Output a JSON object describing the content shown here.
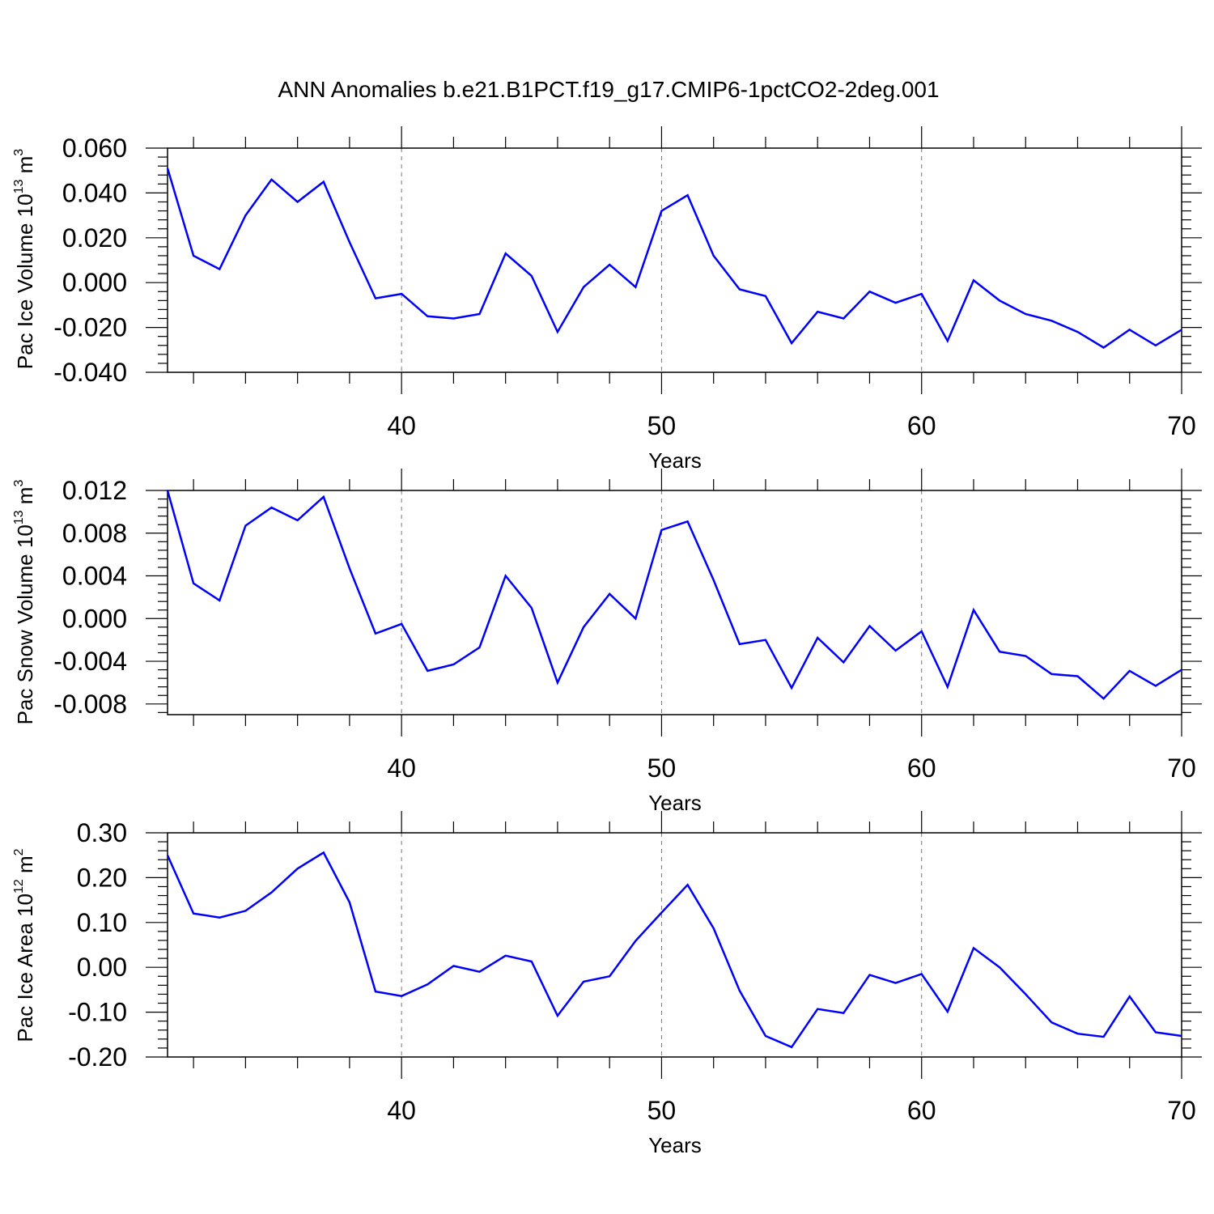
{
  "title": "ANN Anomalies b.e21.B1PCT.f19_g17.CMIP6-1pctCO2-2deg.001",
  "colors": {
    "line": "#0000ff",
    "grid": "#777777",
    "axis": "#000000"
  },
  "chart_data": [
    {
      "type": "line",
      "ylabel": {
        "main": "Pac Ice Volume 10",
        "exp": "13",
        "unit": " m",
        "unit_exp": "3"
      },
      "xlabel": "Years",
      "xlim": [
        31,
        70
      ],
      "ylim": [
        -0.04,
        0.06
      ],
      "xticks": [
        40,
        50,
        60,
        70
      ],
      "yticks": [
        -0.04,
        -0.02,
        0.0,
        0.02,
        0.04,
        0.06
      ],
      "ytick_labels": [
        "-0.040",
        "-0.020",
        "0.000",
        "0.020",
        "0.040",
        "0.060"
      ],
      "x": [
        31,
        32,
        33,
        34,
        35,
        36,
        37,
        38,
        39,
        40,
        41,
        42,
        43,
        44,
        45,
        46,
        47,
        48,
        49,
        50,
        51,
        52,
        53,
        54,
        55,
        56,
        57,
        58,
        59,
        60,
        61,
        62,
        63,
        64,
        65,
        66,
        67,
        68,
        69,
        70
      ],
      "values": [
        0.051,
        0.012,
        0.006,
        0.03,
        0.046,
        0.036,
        0.045,
        0.018,
        -0.007,
        -0.005,
        -0.015,
        -0.016,
        -0.014,
        0.013,
        0.003,
        -0.022,
        -0.002,
        0.008,
        -0.002,
        0.032,
        0.039,
        0.012,
        -0.003,
        -0.006,
        -0.027,
        -0.013,
        -0.016,
        -0.004,
        -0.009,
        -0.005,
        -0.026,
        0.001,
        -0.008,
        -0.014,
        -0.017,
        -0.022,
        -0.029,
        -0.021,
        -0.028,
        -0.021
      ]
    },
    {
      "type": "line",
      "ylabel": {
        "main": "Pac Snow Volume 10",
        "exp": "13",
        "unit": " m",
        "unit_exp": "3"
      },
      "xlabel": "Years",
      "xlim": [
        31,
        70
      ],
      "ylim": [
        -0.009,
        0.012
      ],
      "xticks": [
        40,
        50,
        60,
        70
      ],
      "yticks": [
        -0.008,
        -0.004,
        0.0,
        0.004,
        0.008,
        0.012
      ],
      "ytick_labels": [
        "-0.008",
        "-0.004",
        "0.000",
        "0.004",
        "0.008",
        "0.012"
      ],
      "x": [
        31,
        32,
        33,
        34,
        35,
        36,
        37,
        38,
        39,
        40,
        41,
        42,
        43,
        44,
        45,
        46,
        47,
        48,
        49,
        50,
        51,
        52,
        53,
        54,
        55,
        56,
        57,
        58,
        59,
        60,
        61,
        62,
        63,
        64,
        65,
        66,
        67,
        68,
        69,
        70
      ],
      "values": [
        0.012,
        0.0033,
        0.0017,
        0.0087,
        0.0104,
        0.0092,
        0.0114,
        0.0047,
        -0.0014,
        -0.0005,
        -0.0049,
        -0.0043,
        -0.0027,
        0.004,
        0.001,
        -0.006,
        -0.0008,
        0.0023,
        0.0,
        0.0083,
        0.0091,
        0.0036,
        -0.0024,
        -0.002,
        -0.0065,
        -0.0018,
        -0.0041,
        -0.0007,
        -0.003,
        -0.0012,
        -0.0064,
        0.0008,
        -0.0031,
        -0.0035,
        -0.0052,
        -0.0054,
        -0.0075,
        -0.0049,
        -0.0063,
        -0.0048
      ]
    },
    {
      "type": "line",
      "ylabel": {
        "main": "Pac Ice Area 10",
        "exp": "12",
        "unit": " m",
        "unit_exp": "2"
      },
      "xlabel": "Years",
      "xlim": [
        31,
        70
      ],
      "ylim": [
        -0.2,
        0.3
      ],
      "xticks": [
        40,
        50,
        60,
        70
      ],
      "yticks": [
        -0.2,
        -0.1,
        0.0,
        0.1,
        0.2,
        0.3
      ],
      "ytick_labels": [
        "-0.20",
        "-0.10",
        "0.00",
        "0.10",
        "0.20",
        "0.30"
      ],
      "x": [
        31,
        32,
        33,
        34,
        35,
        36,
        37,
        38,
        39,
        40,
        41,
        42,
        43,
        44,
        45,
        46,
        47,
        48,
        49,
        50,
        51,
        52,
        53,
        54,
        55,
        56,
        57,
        58,
        59,
        60,
        61,
        62,
        63,
        64,
        65,
        66,
        67,
        68,
        69,
        70
      ],
      "values": [
        0.25,
        0.12,
        0.111,
        0.126,
        0.167,
        0.22,
        0.256,
        0.145,
        -0.054,
        -0.064,
        -0.038,
        0.003,
        -0.01,
        0.026,
        0.013,
        -0.108,
        -0.032,
        -0.02,
        0.059,
        0.122,
        0.184,
        0.087,
        -0.052,
        -0.153,
        -0.178,
        -0.093,
        -0.102,
        -0.017,
        -0.035,
        -0.015,
        -0.099,
        0.043,
        0.0,
        -0.06,
        -0.123,
        -0.148,
        -0.155,
        -0.065,
        -0.145,
        -0.153
      ]
    }
  ]
}
